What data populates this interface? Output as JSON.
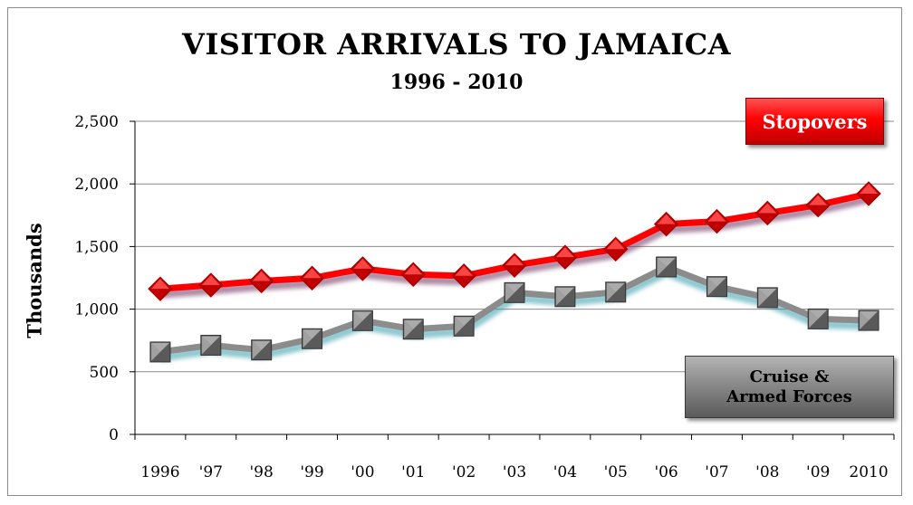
{
  "chart_data": {
    "type": "line",
    "title": "VISITOR ARRIVALS TO JAMAICA",
    "subtitle": "1996 - 2010",
    "ylabel": "Thousands",
    "xlabel": "",
    "categories": [
      "1996",
      "'97",
      "'98",
      "'99",
      "'00",
      "'01",
      "'02",
      "'03",
      "'04",
      "'05",
      "'06",
      "'07",
      "'08",
      "'09",
      "2010"
    ],
    "ylim": [
      0,
      2500
    ],
    "yticks": [
      0,
      500,
      1000,
      1500,
      2000,
      2500
    ],
    "ytick_labels": [
      "0",
      "500",
      "1,000",
      "1,500",
      "2,000",
      "2,500"
    ],
    "grid": true,
    "series": [
      {
        "name": "Stopovers",
        "color": "#ff0000",
        "marker": "diamond",
        "values": [
          1162,
          1192,
          1225,
          1248,
          1323,
          1277,
          1266,
          1350,
          1415,
          1479,
          1679,
          1701,
          1767,
          1831,
          1922
        ]
      },
      {
        "name": "Cruise & Armed Forces",
        "label_lines": [
          "Cruise &",
          "Armed Forces"
        ],
        "color": "#8c8c8c",
        "marker": "square",
        "values": [
          658,
          712,
          674,
          764,
          908,
          840,
          865,
          1132,
          1100,
          1136,
          1337,
          1180,
          1092,
          922,
          910
        ]
      }
    ]
  }
}
